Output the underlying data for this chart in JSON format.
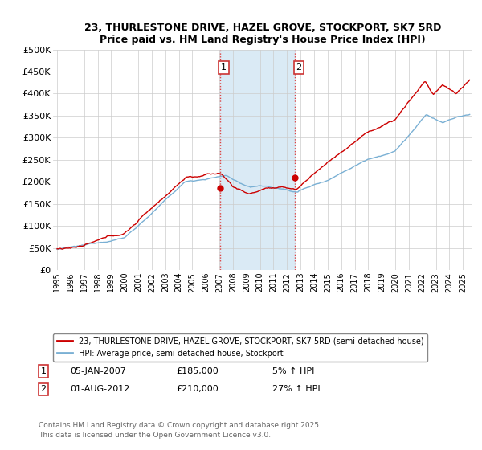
{
  "title": "23, THURLESTONE DRIVE, HAZEL GROVE, STOCKPORT, SK7 5RD",
  "subtitle": "Price paid vs. HM Land Registry's House Price Index (HPI)",
  "legend_line1": "23, THURLESTONE DRIVE, HAZEL GROVE, STOCKPORT, SK7 5RD (semi-detached house)",
  "legend_line2": "HPI: Average price, semi-detached house, Stockport",
  "annotation1_date": "05-JAN-2007",
  "annotation1_price": "£185,000",
  "annotation1_hpi": "5% ↑ HPI",
  "annotation2_date": "01-AUG-2012",
  "annotation2_price": "£210,000",
  "annotation2_hpi": "27% ↑ HPI",
  "footer": "Contains HM Land Registry data © Crown copyright and database right 2025.\nThis data is licensed under the Open Government Licence v3.0.",
  "red_color": "#cc0000",
  "blue_color": "#7ab0d4",
  "highlight_color": "#daeaf5",
  "vline_color": "#dd4444",
  "ylim": [
    0,
    500000
  ],
  "sale1_year": 2007.04,
  "sale1_price": 185000,
  "sale2_year": 2012.58,
  "sale2_price": 210000
}
